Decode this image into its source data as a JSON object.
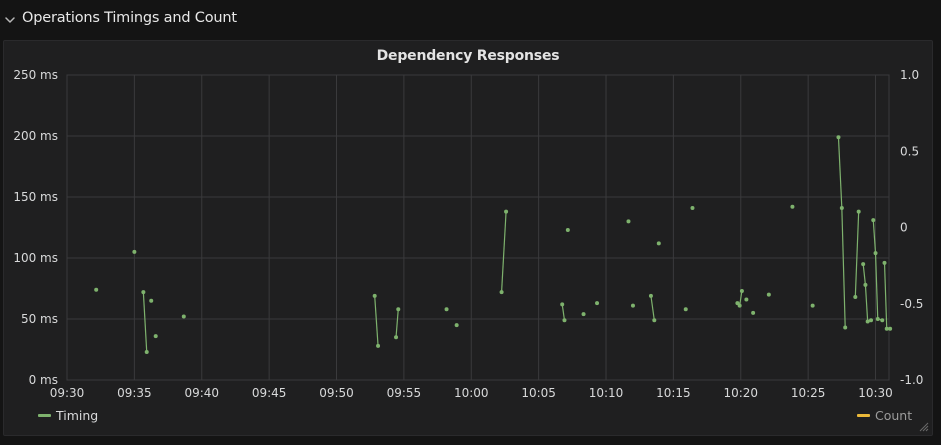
{
  "row": {
    "title": "Operations Timings and Count",
    "chevron_icon": "chevron-down-icon"
  },
  "panel": {
    "title": "Dependency Responses",
    "resize_icon": "resize-handle-icon"
  },
  "colors": {
    "timing": "#7eb26d",
    "count": "#eab839",
    "grid": "#3a3a3c",
    "background": "#1f1f20",
    "text": "#d8d9da"
  },
  "chart_data": {
    "type": "line",
    "title": "Dependency Responses",
    "x_axis": {
      "ticks": [
        "09:30",
        "09:35",
        "09:40",
        "09:45",
        "09:50",
        "09:55",
        "10:00",
        "10:05",
        "10:10",
        "10:15",
        "10:20",
        "10:25",
        "10:30"
      ],
      "range": [
        "09:30",
        "10:31"
      ],
      "grid": true
    },
    "y_left": {
      "ticks": [
        "0 ms",
        "50 ms",
        "100 ms",
        "150 ms",
        "200 ms",
        "250 ms"
      ],
      "range": [
        0,
        250
      ],
      "unit": "ms",
      "grid": true
    },
    "y_right": {
      "ticks": [
        "-1.0",
        "-0.5",
        "0",
        "0.5",
        "1.0"
      ],
      "range": [
        -1.0,
        1.0
      ]
    },
    "legend": {
      "placement": "bottom"
    },
    "series": [
      {
        "name": "Timing",
        "axis": "left",
        "color": "#7eb26d",
        "points": [
          [
            "09:32:10",
            74,
            false
          ],
          [
            "09:35:00",
            105,
            false
          ],
          [
            "09:35:40",
            72,
            false
          ],
          [
            "09:35:55",
            23,
            true
          ],
          [
            "09:36:15",
            65,
            false
          ],
          [
            "09:36:35",
            36,
            false
          ],
          [
            "09:38:40",
            52,
            false
          ],
          [
            "09:52:50",
            69,
            false
          ],
          [
            "09:53:05",
            28,
            true
          ],
          [
            "09:54:25",
            35,
            false
          ],
          [
            "09:54:35",
            58,
            true
          ],
          [
            "09:58:10",
            58,
            false
          ],
          [
            "09:58:55",
            45,
            false
          ],
          [
            "10:02:15",
            72,
            false
          ],
          [
            "10:02:35",
            138,
            true
          ],
          [
            "10:06:45",
            62,
            false
          ],
          [
            "10:06:55",
            49,
            true
          ],
          [
            "10:07:10",
            123,
            false
          ],
          [
            "10:08:20",
            54,
            false
          ],
          [
            "10:09:20",
            63,
            false
          ],
          [
            "10:11:40",
            130,
            false
          ],
          [
            "10:12:00",
            61,
            false
          ],
          [
            "10:13:20",
            69,
            false
          ],
          [
            "10:13:35",
            49,
            true
          ],
          [
            "10:13:55",
            112,
            false
          ],
          [
            "10:15:55",
            58,
            false
          ],
          [
            "10:16:25",
            141,
            false
          ],
          [
            "10:19:45",
            63,
            false
          ],
          [
            "10:19:55",
            61,
            true
          ],
          [
            "10:20:05",
            73,
            true
          ],
          [
            "10:20:25",
            66,
            false
          ],
          [
            "10:20:55",
            55,
            false
          ],
          [
            "10:22:05",
            70,
            false
          ],
          [
            "10:23:50",
            142,
            false
          ],
          [
            "10:25:20",
            61,
            false
          ],
          [
            "10:27:15",
            199,
            false
          ],
          [
            "10:27:30",
            141,
            true
          ],
          [
            "10:27:45",
            43,
            true
          ],
          [
            "10:28:30",
            68,
            false
          ],
          [
            "10:28:45",
            138,
            true
          ],
          [
            "10:29:05",
            95,
            false
          ],
          [
            "10:29:15",
            78,
            true
          ],
          [
            "10:29:25",
            48,
            true
          ],
          [
            "10:29:40",
            49,
            true
          ],
          [
            "10:29:50",
            131,
            false
          ],
          [
            "10:30:00",
            104,
            true
          ],
          [
            "10:30:10",
            50,
            true
          ],
          [
            "10:30:30",
            49,
            true
          ],
          [
            "10:30:40",
            96,
            false
          ],
          [
            "10:30:50",
            42,
            true
          ],
          [
            "10:31:05",
            42,
            true
          ]
        ]
      },
      {
        "name": "Count",
        "axis": "right",
        "color": "#eab839",
        "points": []
      }
    ]
  }
}
